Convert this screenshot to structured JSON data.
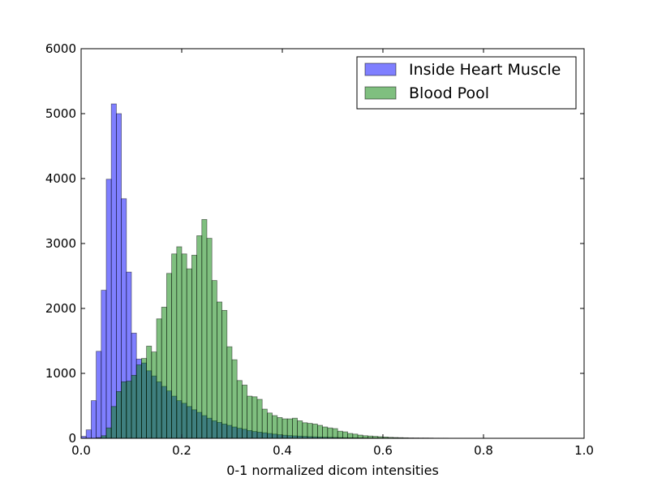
{
  "chart_data": {
    "type": "bar",
    "subtype": "histogram",
    "title": "",
    "xlabel": "0-1 normalized dicom intensities",
    "ylabel": "",
    "xlim": [
      0.0,
      1.0
    ],
    "ylim": [
      0,
      6000
    ],
    "x_ticks": [
      "0.0",
      "0.2",
      "0.4",
      "0.6",
      "0.8",
      "1.0"
    ],
    "y_ticks": [
      "0",
      "1000",
      "2000",
      "3000",
      "4000",
      "5000",
      "6000"
    ],
    "bin_width": 0.01,
    "bin_start": 0.0,
    "legend_position": "top-right",
    "grid": false,
    "series": [
      {
        "name": "Inside Heart Muscle",
        "color": "#0000ff",
        "values": [
          30,
          130,
          580,
          1340,
          2280,
          3990,
          5150,
          5000,
          3690,
          2560,
          1620,
          1220,
          1160,
          1040,
          960,
          870,
          800,
          730,
          650,
          580,
          540,
          490,
          440,
          400,
          350,
          310,
          270,
          245,
          220,
          200,
          175,
          155,
          140,
          120,
          105,
          95,
          85,
          75,
          65,
          55,
          48,
          42,
          38,
          34,
          30,
          26,
          23,
          20,
          18,
          16,
          14,
          12,
          10,
          9,
          8,
          7,
          6,
          5,
          5,
          4,
          4,
          3,
          3,
          3,
          2,
          2,
          2,
          2,
          2,
          2,
          1,
          1,
          1,
          1,
          1,
          1,
          1,
          1,
          1,
          1,
          0,
          0,
          0,
          0,
          0,
          0,
          0,
          0,
          0,
          0,
          0,
          0,
          0,
          0,
          0,
          0,
          0,
          0,
          0,
          0
        ]
      },
      {
        "name": "Blood Pool",
        "color": "#008000",
        "values": [
          0,
          0,
          0,
          10,
          40,
          160,
          490,
          720,
          870,
          880,
          970,
          1130,
          1230,
          1420,
          1330,
          1840,
          2020,
          2540,
          2840,
          2950,
          2840,
          2610,
          2820,
          3120,
          3370,
          3080,
          2430,
          2100,
          1970,
          1410,
          1210,
          890,
          820,
          650,
          640,
          600,
          450,
          390,
          350,
          320,
          300,
          300,
          310,
          270,
          240,
          230,
          220,
          200,
          175,
          160,
          150,
          110,
          100,
          75,
          65,
          50,
          40,
          35,
          30,
          25,
          20,
          15,
          12,
          10,
          8,
          6,
          5,
          4,
          4,
          3,
          2,
          2,
          2,
          1,
          1,
          1,
          1,
          0,
          0,
          0,
          0,
          0,
          0,
          0,
          0,
          0,
          0,
          0,
          0,
          0,
          0,
          0,
          0,
          0,
          0,
          0,
          0,
          0,
          0,
          0
        ]
      }
    ]
  }
}
